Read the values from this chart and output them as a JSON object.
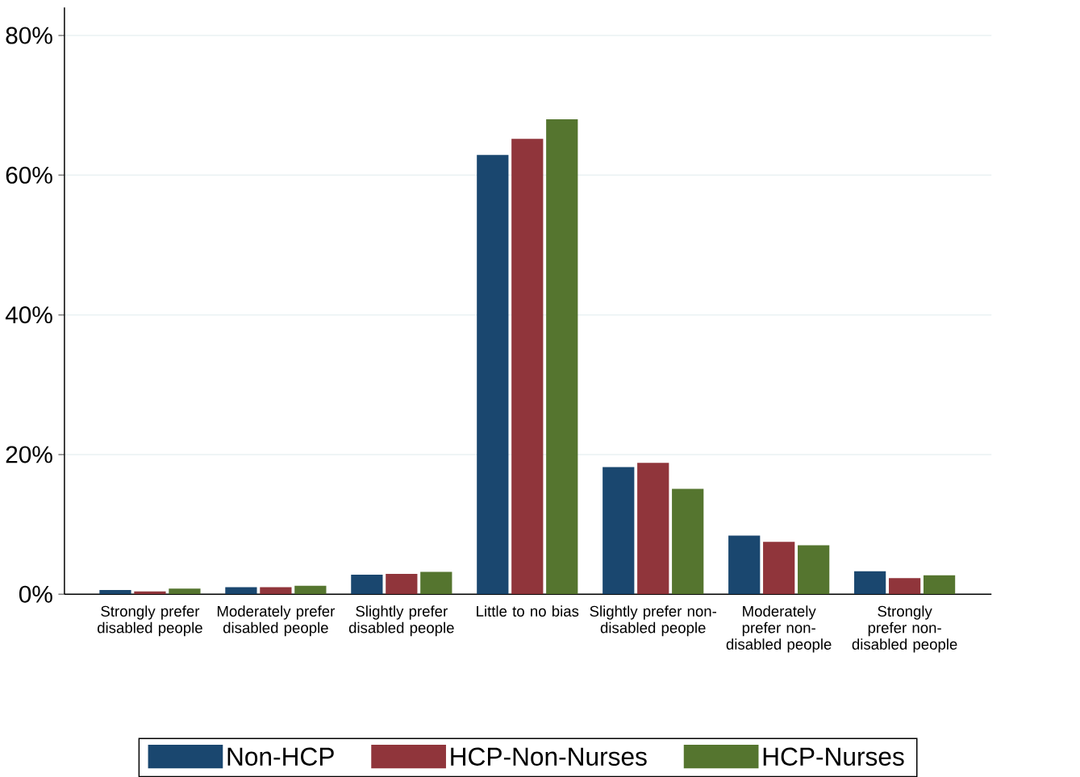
{
  "chart_data": {
    "type": "bar",
    "categories": [
      "Strongly prefer disabled people",
      "Moderately prefer disabled people",
      "Slightly prefer disabled people",
      "Little to no bias",
      "Slightly prefer non-disabled people",
      "Moderately prefer non-disabled people",
      "Strongly prefer non-disabled people"
    ],
    "series": [
      {
        "name": "Non-HCP",
        "color": "#1a476f",
        "values": [
          0.6,
          1.0,
          2.8,
          62.9,
          18.2,
          8.4,
          3.3
        ]
      },
      {
        "name": "HCP-Non-Nurses",
        "color": "#90353b",
        "values": [
          0.4,
          1.0,
          2.9,
          65.2,
          18.8,
          7.5,
          2.3
        ]
      },
      {
        "name": "HCP-Nurses",
        "color": "#55752f",
        "values": [
          0.8,
          1.2,
          3.2,
          68.0,
          15.1,
          7.0,
          2.7
        ]
      }
    ],
    "ylim": [
      0,
      84
    ],
    "yticks": [
      {
        "value": 0,
        "label": "0%"
      },
      {
        "value": 20,
        "label": "20%"
      },
      {
        "value": 40,
        "label": "40%"
      },
      {
        "value": 60,
        "label": "60%"
      },
      {
        "value": 80,
        "label": "80%"
      }
    ],
    "grid": "y",
    "legend": "bottom"
  }
}
